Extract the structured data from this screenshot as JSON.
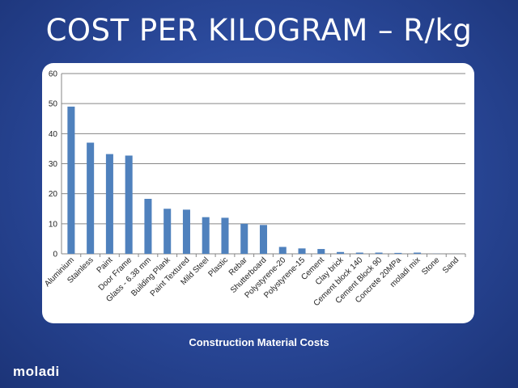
{
  "slide": {
    "title": "COST PER KILOGRAM – R/kg",
    "caption": "Construction Material Costs",
    "brand": "moladi"
  },
  "colors": {
    "bar": "#4f81bd",
    "grid": "#868686",
    "axis_text": "#222222"
  },
  "chart_data": {
    "type": "bar",
    "title": "",
    "xlabel": "",
    "ylabel": "",
    "ylim": [
      0,
      60
    ],
    "yticks": [
      0,
      10,
      20,
      30,
      40,
      50,
      60
    ],
    "grid": true,
    "categories": [
      "Aluminium",
      "Stainless",
      "Paint",
      "Door Frame",
      "Glass - 6.38 mm",
      "Building Plank",
      "Paint Textured",
      "Mild Steel",
      "Plastic",
      "Rebar",
      "Shutterboard",
      "Polystyrene-20",
      "Polystyrene-15",
      "Cement",
      "Clay brick",
      "Cement block 140",
      "Cement Block 90",
      "Concrete 20MPa",
      "moladi mix",
      "Stone",
      "Sand"
    ],
    "values": [
      49,
      37,
      33.2,
      32.7,
      18.3,
      15,
      14.7,
      12.2,
      12,
      10,
      9.6,
      2.3,
      1.8,
      1.6,
      0.6,
      0.4,
      0.4,
      0.3,
      0.4,
      0.05,
      0.02
    ]
  }
}
